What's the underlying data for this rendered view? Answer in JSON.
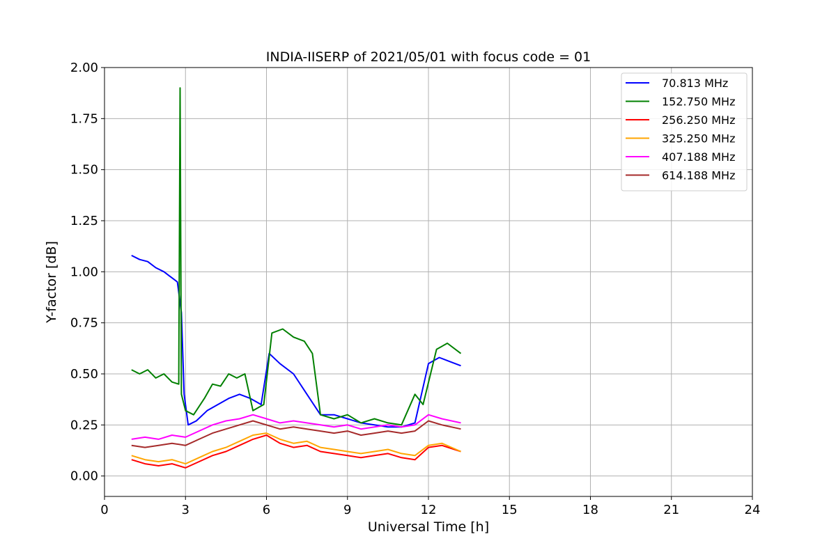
{
  "chart_data": {
    "type": "line",
    "title": "INDIA-IISERP of 2021/05/01 with focus code = 01",
    "xlabel": "Universal Time [h]",
    "ylabel": "Y-factor [dB]",
    "xlim": [
      0,
      24
    ],
    "ylim": [
      -0.1,
      2.0
    ],
    "xticks": [
      0,
      3,
      6,
      9,
      12,
      15,
      18,
      21,
      24
    ],
    "yticks": [
      0.0,
      0.25,
      0.5,
      0.75,
      1.0,
      1.25,
      1.5,
      1.75,
      2.0
    ],
    "ytick_labels": [
      "0.00",
      "0.25",
      "0.50",
      "0.75",
      "1.00",
      "1.25",
      "1.50",
      "1.75",
      "2.00"
    ],
    "grid": true,
    "legend_position": "top-right",
    "series": [
      {
        "name": " 70.813 MHz",
        "color": "#0000ff",
        "x": [
          1.0,
          1.3,
          1.6,
          1.9,
          2.2,
          2.4,
          2.5,
          2.7,
          2.85,
          2.95,
          3.1,
          3.4,
          3.8,
          4.2,
          4.6,
          5.0,
          5.4,
          5.8,
          6.1,
          6.5,
          7.0,
          7.5,
          8.0,
          8.5,
          9.0,
          9.5,
          10.0,
          10.5,
          11.0,
          11.5,
          12.0,
          12.4,
          12.8,
          13.2
        ],
        "y": [
          1.08,
          1.06,
          1.05,
          1.02,
          1.0,
          0.98,
          0.97,
          0.95,
          0.8,
          0.4,
          0.25,
          0.27,
          0.32,
          0.35,
          0.38,
          0.4,
          0.38,
          0.35,
          0.6,
          0.55,
          0.5,
          0.4,
          0.3,
          0.3,
          0.28,
          0.26,
          0.25,
          0.24,
          0.24,
          0.26,
          0.55,
          0.58,
          0.56,
          0.54
        ]
      },
      {
        "name": "152.750 MHz",
        "color": "#008000",
        "x": [
          1.0,
          1.3,
          1.6,
          1.9,
          2.2,
          2.5,
          2.75,
          2.8,
          2.85,
          3.0,
          3.3,
          3.7,
          4.0,
          4.3,
          4.6,
          4.9,
          5.2,
          5.5,
          5.9,
          6.2,
          6.6,
          7.0,
          7.4,
          7.7,
          8.0,
          8.5,
          9.0,
          9.5,
          10.0,
          10.5,
          11.0,
          11.5,
          11.8,
          12.3,
          12.7,
          13.2
        ],
        "y": [
          0.52,
          0.5,
          0.52,
          0.48,
          0.5,
          0.46,
          0.45,
          1.9,
          0.4,
          0.32,
          0.3,
          0.38,
          0.45,
          0.44,
          0.5,
          0.48,
          0.5,
          0.32,
          0.35,
          0.7,
          0.72,
          0.68,
          0.66,
          0.6,
          0.3,
          0.28,
          0.3,
          0.26,
          0.28,
          0.26,
          0.25,
          0.4,
          0.35,
          0.62,
          0.65,
          0.6
        ]
      },
      {
        "name": "256.250 MHz",
        "color": "#ff0000",
        "x": [
          1.0,
          1.5,
          2.0,
          2.5,
          3.0,
          3.5,
          4.0,
          4.5,
          5.0,
          5.5,
          6.0,
          6.5,
          7.0,
          7.5,
          8.0,
          8.5,
          9.0,
          9.5,
          10.0,
          10.5,
          11.0,
          11.5,
          12.0,
          12.5,
          13.2
        ],
        "y": [
          0.08,
          0.06,
          0.05,
          0.06,
          0.04,
          0.07,
          0.1,
          0.12,
          0.15,
          0.18,
          0.2,
          0.16,
          0.14,
          0.15,
          0.12,
          0.11,
          0.1,
          0.09,
          0.1,
          0.11,
          0.09,
          0.08,
          0.14,
          0.15,
          0.12
        ]
      },
      {
        "name": "325.250 MHz",
        "color": "#ffa500",
        "x": [
          1.0,
          1.5,
          2.0,
          2.5,
          3.0,
          3.5,
          4.0,
          4.5,
          5.0,
          5.5,
          6.0,
          6.5,
          7.0,
          7.5,
          8.0,
          8.5,
          9.0,
          9.5,
          10.0,
          10.5,
          11.0,
          11.5,
          12.0,
          12.5,
          13.2
        ],
        "y": [
          0.1,
          0.08,
          0.07,
          0.08,
          0.06,
          0.09,
          0.12,
          0.14,
          0.17,
          0.2,
          0.21,
          0.18,
          0.16,
          0.17,
          0.14,
          0.13,
          0.12,
          0.11,
          0.12,
          0.13,
          0.11,
          0.1,
          0.15,
          0.16,
          0.12
        ]
      },
      {
        "name": "407.188 MHz",
        "color": "#ff00ff",
        "x": [
          1.0,
          1.5,
          2.0,
          2.5,
          3.0,
          3.5,
          4.0,
          4.5,
          5.0,
          5.5,
          6.0,
          6.5,
          7.0,
          7.5,
          8.0,
          8.5,
          9.0,
          9.5,
          10.0,
          10.5,
          11.0,
          11.5,
          12.0,
          12.5,
          13.2
        ],
        "y": [
          0.18,
          0.19,
          0.18,
          0.2,
          0.19,
          0.22,
          0.25,
          0.27,
          0.28,
          0.3,
          0.28,
          0.26,
          0.27,
          0.26,
          0.25,
          0.24,
          0.25,
          0.23,
          0.24,
          0.25,
          0.24,
          0.25,
          0.3,
          0.28,
          0.26
        ]
      },
      {
        "name": "614.188 MHz",
        "color": "#a52a2a",
        "x": [
          1.0,
          1.5,
          2.0,
          2.5,
          3.0,
          3.5,
          4.0,
          4.5,
          5.0,
          5.5,
          6.0,
          6.5,
          7.0,
          7.5,
          8.0,
          8.5,
          9.0,
          9.5,
          10.0,
          10.5,
          11.0,
          11.5,
          12.0,
          12.5,
          13.2
        ],
        "y": [
          0.15,
          0.14,
          0.15,
          0.16,
          0.15,
          0.18,
          0.21,
          0.23,
          0.25,
          0.27,
          0.25,
          0.23,
          0.24,
          0.23,
          0.22,
          0.21,
          0.22,
          0.2,
          0.21,
          0.22,
          0.21,
          0.22,
          0.27,
          0.25,
          0.23
        ]
      }
    ]
  }
}
